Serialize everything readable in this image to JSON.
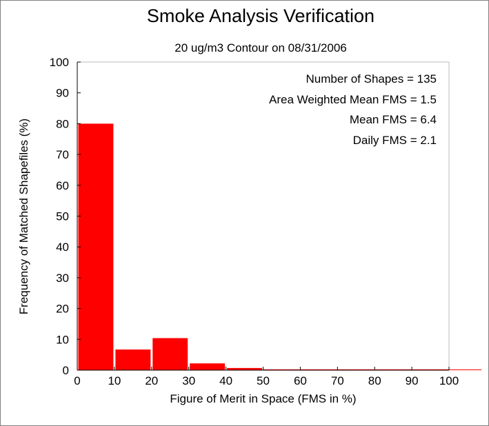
{
  "chart_data": {
    "type": "bar",
    "title": "Smoke Analysis Verification",
    "subtitle": "20 ug/m3 Contour on 08/31/2006",
    "xlabel": "Figure of Merit in Space (FMS in %)",
    "ylabel": "Frequency of Matched Shapefiles (%)",
    "xlim": [
      0,
      100
    ],
    "ylim": [
      0,
      100
    ],
    "xticks": [
      0,
      10,
      20,
      30,
      40,
      50,
      60,
      70,
      80,
      90,
      100
    ],
    "yticks": [
      0,
      10,
      20,
      30,
      40,
      50,
      60,
      70,
      80,
      90,
      100
    ],
    "bins": [
      {
        "x0": 0,
        "x1": 10,
        "value": 80
      },
      {
        "x0": 10,
        "x1": 20,
        "value": 6.7
      },
      {
        "x0": 20,
        "x1": 30,
        "value": 10.4
      },
      {
        "x0": 30,
        "x1": 40,
        "value": 2.2
      },
      {
        "x0": 40,
        "x1": 50,
        "value": 0.7
      },
      {
        "x0": 50,
        "x1": 60,
        "value": 0
      },
      {
        "x0": 60,
        "x1": 70,
        "value": 0
      },
      {
        "x0": 70,
        "x1": 80,
        "value": 0
      },
      {
        "x0": 80,
        "x1": 90,
        "value": 0
      },
      {
        "x0": 90,
        "x1": 100,
        "value": 0
      }
    ],
    "annotations": [
      "Number of Shapes = 135",
      "Area Weighted Mean FMS = 1.5",
      "Mean FMS = 6.4",
      "Daily FMS = 2.1"
    ],
    "bar_color": "#ff0000",
    "grid": false,
    "legend": "none"
  }
}
